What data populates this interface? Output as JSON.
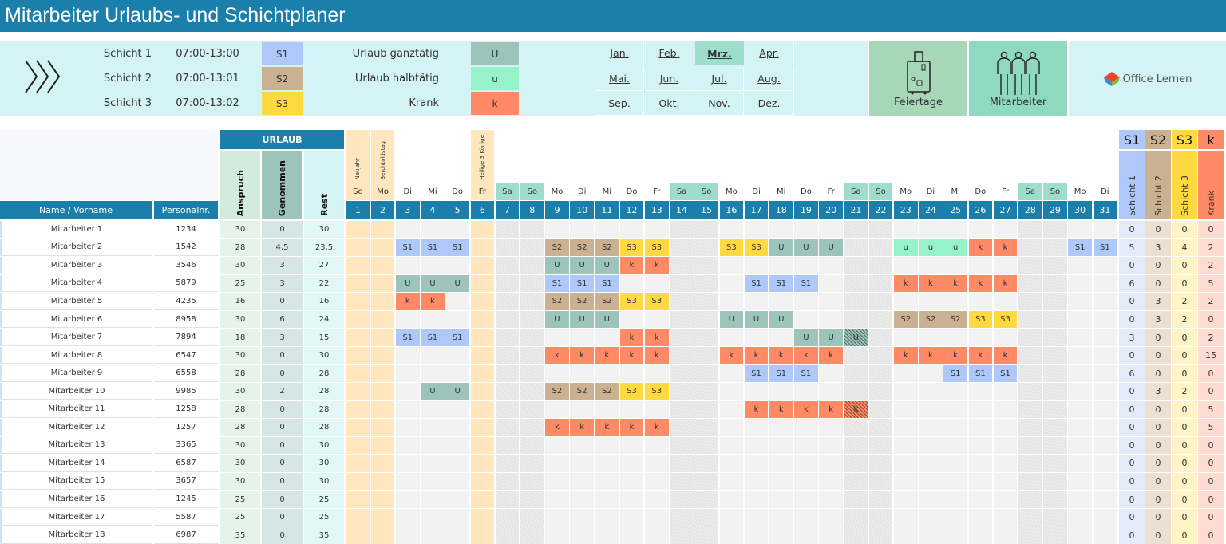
{
  "title": "Mitarbeiter Urlaubs- und Schichtplaner",
  "colors": {
    "S1": "#aec8f9",
    "S2": "#c9b191",
    "S3": "#ffd940",
    "U": "#9dc4bb",
    "u": "#95f2c9",
    "k": "#ff8a65",
    "holiday": "#ffe6bd",
    "weekend": "#9edccc",
    "header": "#1a80ab",
    "panel": "#d3f3f5"
  },
  "legend": {
    "shifts": [
      {
        "label": "Schicht 1",
        "time": "07:00-13:00",
        "code": "S1"
      },
      {
        "label": "Schicht 2",
        "time": "07:00-13:01",
        "code": "S2"
      },
      {
        "label": "Schicht 3",
        "time": "07:00-13:02",
        "code": "S3"
      }
    ],
    "absences": [
      {
        "label": "Urlaub ganztätig",
        "code": "U"
      },
      {
        "label": "Urlaub halbtätig",
        "code": "u"
      },
      {
        "label": "Krank",
        "code": "k"
      }
    ]
  },
  "months": [
    "Jan.",
    "Feb.",
    "Mrz.",
    "Apr.",
    "Mai.",
    "Jun.",
    "Jul.",
    "Aug.",
    "Sep.",
    "Okt.",
    "Nov.",
    "Dez."
  ],
  "selected_month": "Mrz.",
  "buttons": {
    "feiertage": "Feiertage",
    "mitarbeiter": "Mitarbeiter"
  },
  "logo": "Office Lernen",
  "icons": {
    "arrows": "triple-chevron-right-icon",
    "feiertage": "suitcase-icon",
    "mitarbeiter": "people-icon",
    "logo": "office-lernen-logo-icon"
  },
  "table": {
    "urlaub": "URLAUB",
    "col_name": "Name / Vorname",
    "col_pnr": "Personalnr.",
    "col_anspruch": "Anspruch",
    "col_genommen": "Genommen",
    "col_rest": "Rest",
    "summary_codes": [
      "S1",
      "S2",
      "S3",
      "k"
    ],
    "summary_labels": [
      "Schicht 1",
      "Schicht 2",
      "Schicht 3",
      "Krank"
    ],
    "holidays": {
      "1": "Neujahr",
      "2": "Berchtoldstag",
      "6": "Heilige 3 Könige"
    },
    "weekends": [
      7,
      8,
      14,
      15,
      21,
      22,
      28,
      29
    ],
    "weekdays": [
      "So",
      "Mo",
      "Di",
      "Mi",
      "Do",
      "Fr",
      "Sa",
      "So",
      "Mo",
      "Di",
      "Mi",
      "Do",
      "Fr",
      "Sa",
      "So",
      "Mo",
      "Di",
      "Mi",
      "Do",
      "Fr",
      "Sa",
      "So",
      "Mo",
      "Di",
      "Mi",
      "Do",
      "Fr",
      "Sa",
      "So",
      "Mo",
      "Di"
    ],
    "days": [
      1,
      2,
      3,
      4,
      5,
      6,
      7,
      8,
      9,
      10,
      11,
      12,
      13,
      14,
      15,
      16,
      17,
      18,
      19,
      20,
      21,
      22,
      23,
      24,
      25,
      26,
      27,
      28,
      29,
      30,
      31
    ],
    "rows": [
      {
        "name": "Mitarbeiter 1",
        "pnr": "1234",
        "anspruch": "30",
        "genommen": "0",
        "rest": "30",
        "entries": {},
        "summary": [
          "0",
          "0",
          "0",
          "0"
        ]
      },
      {
        "name": "Mitarbeiter 2",
        "pnr": "1542",
        "anspruch": "28",
        "genommen": "4,5",
        "rest": "23,5",
        "entries": {
          "3": "S1",
          "4": "S1",
          "5": "S1",
          "9": "S2",
          "10": "S2",
          "11": "S2",
          "12": "S3",
          "13": "S3",
          "16": "S3",
          "17": "S3",
          "18": "U",
          "19": "U",
          "20": "U",
          "23": "u",
          "24": "u",
          "25": "u",
          "26": "k",
          "27": "k",
          "30": "S1",
          "31": "S1"
        },
        "summary": [
          "5",
          "3",
          "4",
          "2"
        ]
      },
      {
        "name": "Mitarbeiter 3",
        "pnr": "3546",
        "anspruch": "30",
        "genommen": "3",
        "rest": "27",
        "entries": {
          "9": "U",
          "10": "U",
          "11": "U",
          "12": "k",
          "13": "k"
        },
        "summary": [
          "0",
          "0",
          "0",
          "2"
        ]
      },
      {
        "name": "Mitarbeiter 4",
        "pnr": "5879",
        "anspruch": "25",
        "genommen": "3",
        "rest": "22",
        "entries": {
          "3": "U",
          "4": "U",
          "5": "U",
          "9": "S1",
          "10": "S1",
          "11": "S1",
          "17": "S1",
          "18": "S1",
          "19": "S1",
          "23": "k",
          "24": "k",
          "25": "k",
          "26": "k",
          "27": "k"
        },
        "summary": [
          "6",
          "0",
          "0",
          "5"
        ]
      },
      {
        "name": "Mitarbeiter 5",
        "pnr": "4235",
        "anspruch": "16",
        "genommen": "0",
        "rest": "16",
        "entries": {
          "3": "k",
          "4": "k",
          "9": "S2",
          "10": "S2",
          "11": "S2",
          "12": "S3",
          "13": "S3"
        },
        "summary": [
          "0",
          "3",
          "2",
          "2"
        ]
      },
      {
        "name": "Mitarbeiter 6",
        "pnr": "8958",
        "anspruch": "30",
        "genommen": "6",
        "rest": "24",
        "entries": {
          "9": "U",
          "10": "U",
          "11": "U",
          "16": "U",
          "17": "U",
          "18": "U",
          "23": "S2",
          "24": "S2",
          "25": "S2",
          "26": "S3",
          "27": "S3"
        },
        "summary": [
          "0",
          "3",
          "2",
          "0"
        ]
      },
      {
        "name": "Mitarbeiter 7",
        "pnr": "7894",
        "anspruch": "18",
        "genommen": "3",
        "rest": "15",
        "entries": {
          "3": "S1",
          "4": "S1",
          "5": "S1",
          "12": "k",
          "13": "k",
          "19": "U",
          "20": "U",
          "21": "U"
        },
        "summary": [
          "3",
          "0",
          "0",
          "2"
        ]
      },
      {
        "name": "Mitarbeiter 8",
        "pnr": "6547",
        "anspruch": "30",
        "genommen": "0",
        "rest": "30",
        "entries": {
          "9": "k",
          "10": "k",
          "11": "k",
          "12": "k",
          "13": "k",
          "16": "k",
          "17": "k",
          "18": "k",
          "19": "k",
          "20": "k",
          "23": "k",
          "24": "k",
          "25": "k",
          "26": "k",
          "27": "k"
        },
        "summary": [
          "0",
          "0",
          "0",
          "15"
        ]
      },
      {
        "name": "Mitarbeiter 9",
        "pnr": "6558",
        "anspruch": "28",
        "genommen": "0",
        "rest": "28",
        "entries": {
          "17": "S1",
          "18": "S1",
          "19": "S1",
          "25": "S1",
          "26": "S1",
          "27": "S1"
        },
        "summary": [
          "6",
          "0",
          "0",
          "0"
        ]
      },
      {
        "name": "Mitarbeiter 10",
        "pnr": "9985",
        "anspruch": "30",
        "genommen": "2",
        "rest": "28",
        "entries": {
          "4": "U",
          "5": "U",
          "9": "S2",
          "10": "S2",
          "11": "S2",
          "12": "S3",
          "13": "S3"
        },
        "summary": [
          "0",
          "3",
          "2",
          "0"
        ]
      },
      {
        "name": "Mitarbeiter 11",
        "pnr": "1258",
        "anspruch": "28",
        "genommen": "0",
        "rest": "28",
        "entries": {
          "17": "k",
          "18": "k",
          "19": "k",
          "20": "k",
          "21": "k"
        },
        "summary": [
          "0",
          "0",
          "0",
          "5"
        ]
      },
      {
        "name": "Mitarbeiter 12",
        "pnr": "1257",
        "anspruch": "28",
        "genommen": "0",
        "rest": "28",
        "entries": {
          "9": "k",
          "10": "k",
          "11": "k",
          "12": "k",
          "13": "k"
        },
        "summary": [
          "0",
          "0",
          "0",
          "5"
        ]
      },
      {
        "name": "Mitarbeiter 13",
        "pnr": "3365",
        "anspruch": "30",
        "genommen": "0",
        "rest": "30",
        "entries": {},
        "summary": [
          "0",
          "0",
          "0",
          "0"
        ]
      },
      {
        "name": "Mitarbeiter 14",
        "pnr": "6587",
        "anspruch": "30",
        "genommen": "0",
        "rest": "30",
        "entries": {},
        "summary": [
          "0",
          "0",
          "0",
          "0"
        ]
      },
      {
        "name": "Mitarbeiter 15",
        "pnr": "3657",
        "anspruch": "30",
        "genommen": "0",
        "rest": "30",
        "entries": {},
        "summary": [
          "0",
          "0",
          "0",
          "0"
        ]
      },
      {
        "name": "Mitarbeiter 16",
        "pnr": "1245",
        "anspruch": "25",
        "genommen": "0",
        "rest": "25",
        "entries": {},
        "summary": [
          "0",
          "0",
          "0",
          "0"
        ]
      },
      {
        "name": "Mitarbeiter 17",
        "pnr": "5587",
        "anspruch": "25",
        "genommen": "0",
        "rest": "25",
        "entries": {},
        "summary": [
          "0",
          "0",
          "0",
          "0"
        ]
      },
      {
        "name": "Mitarbeiter 18",
        "pnr": "6987",
        "anspruch": "35",
        "genommen": "0",
        "rest": "35",
        "entries": {},
        "summary": [
          "0",
          "0",
          "0",
          "0"
        ]
      }
    ]
  }
}
